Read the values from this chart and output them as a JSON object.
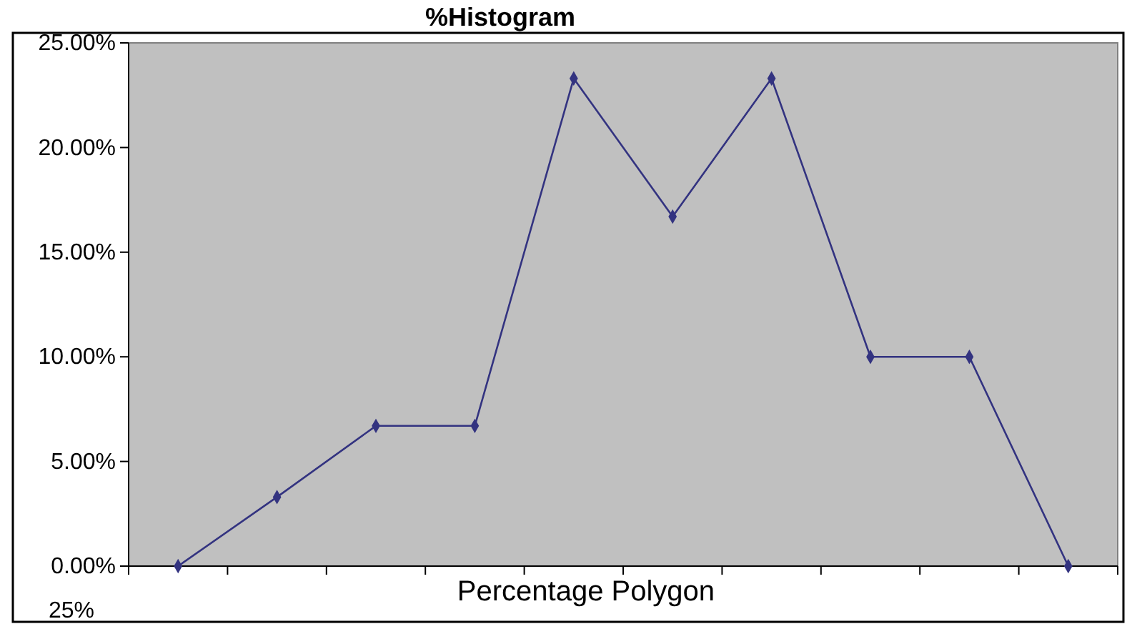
{
  "chart_data": {
    "type": "line",
    "title": "%Histogram",
    "xlabel": "Percentage Polygon",
    "categories": [
      null,
      null,
      null,
      null,
      null,
      null,
      null,
      null,
      null,
      null
    ],
    "series": [
      {
        "color": "#333380",
        "values": [
          0,
          3.3,
          6.7,
          6.7,
          23.3,
          16.7,
          23.3,
          10,
          10,
          0
        ]
      }
    ],
    "ylim": [
      0,
      25
    ],
    "yticks": [
      {
        "value": 0,
        "label": "0.00%"
      },
      {
        "value": 5,
        "label": "5.00%"
      },
      {
        "value": 10,
        "label": "10.00%"
      },
      {
        "value": 15,
        "label": "15.00%"
      },
      {
        "value": 20,
        "label": "20.00%"
      },
      {
        "value": 25,
        "label": "25.00%"
      }
    ],
    "annotations": [
      "25%"
    ],
    "grid": false,
    "marker": "diamond",
    "line_style": "solid"
  }
}
